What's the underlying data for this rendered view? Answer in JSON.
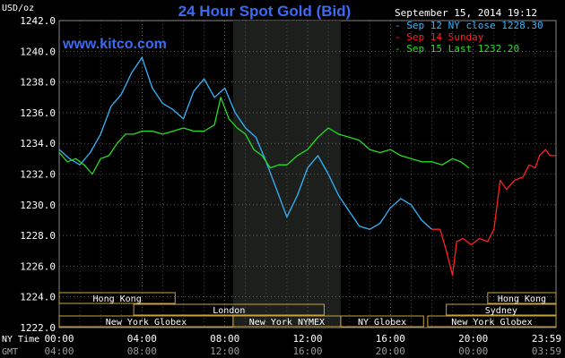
{
  "chart_data": {
    "type": "line",
    "title": "24 Hour Spot Gold (Bid)",
    "watermark": "www.kitco.com",
    "timestamp": "September 15, 2014 19:12",
    "ylabel": "USD/oz",
    "ylim": [
      1222.0,
      1242.0
    ],
    "yticks": [
      "1242.0",
      "1240.0",
      "1238.0",
      "1236.0",
      "1234.0",
      "1232.0",
      "1230.0",
      "1228.0",
      "1226.0",
      "1224.0",
      "1222.0"
    ],
    "xlim": [
      0,
      24
    ],
    "grid": true,
    "legend_position": "top-right",
    "x_rows": [
      {
        "label": "NY Time",
        "ticks": [
          "00:00",
          "04:00",
          "08:00",
          "12:00",
          "16:00",
          "20:00",
          "23:59"
        ]
      },
      {
        "label": "GMT",
        "ticks": [
          "04:00",
          "08:00",
          "12:00",
          "16:00",
          "20:00",
          "00:00",
          "03:59"
        ]
      }
    ],
    "sessions": [
      {
        "name": "Hong Kong",
        "start": 0,
        "end": 5.6,
        "row": 0
      },
      {
        "name": "Hong Kong",
        "start": 20.7,
        "end": 24,
        "row": 0
      },
      {
        "name": "Sydney",
        "start": 18.7,
        "end": 24,
        "row": 1
      },
      {
        "name": "London",
        "start": 3.6,
        "end": 12.8,
        "row": 1
      },
      {
        "name": "New York Globex",
        "start": 0,
        "end": 8.4,
        "row": 2
      },
      {
        "name": "New York NYMEX",
        "start": 8.4,
        "end": 13.6,
        "row": 2
      },
      {
        "name": "NY Globex",
        "start": 13.6,
        "end": 17.6,
        "row": 2
      },
      {
        "name": "New York Globex",
        "start": 17.8,
        "end": 24,
        "row": 2
      }
    ],
    "shaded_region": {
      "start": 8.4,
      "end": 13.6
    },
    "series": [
      {
        "name": "Sep 12 NY close 1228.30",
        "color": "#33b5ff",
        "x": [
          0,
          0.5,
          1.0,
          1.5,
          2.0,
          2.5,
          3.0,
          3.5,
          4.0,
          4.5,
          5.0,
          5.5,
          6.0,
          6.5,
          7.0,
          7.5,
          8.0,
          8.5,
          9.0,
          9.5,
          10.0,
          10.5,
          11.0,
          11.5,
          12.0,
          12.5,
          13.0,
          13.5,
          14.0,
          14.5,
          15.0,
          15.5,
          16.0,
          16.5,
          17.0,
          17.5,
          18.0
        ],
        "values": [
          1233.6,
          1233.0,
          1232.6,
          1233.4,
          1234.6,
          1236.4,
          1237.2,
          1238.6,
          1239.6,
          1237.6,
          1236.6,
          1236.2,
          1235.6,
          1237.4,
          1238.2,
          1237.0,
          1237.6,
          1236.0,
          1235.0,
          1234.4,
          1232.8,
          1231.0,
          1229.2,
          1230.6,
          1232.4,
          1233.2,
          1232.0,
          1230.6,
          1229.6,
          1228.6,
          1228.4,
          1228.8,
          1229.8,
          1230.4,
          1230.0,
          1229.0,
          1228.4
        ]
      },
      {
        "name": "Sep 14 Sunday",
        "color": "#ff2020",
        "x": [
          18.0,
          18.4,
          18.7,
          19.0,
          19.2,
          19.5,
          19.9,
          20.3,
          20.7,
          21.0,
          21.3,
          21.6,
          22.0,
          22.4,
          22.7,
          23.0,
          23.2,
          23.5,
          23.7,
          23.99
        ],
        "values": [
          1228.4,
          1228.4,
          1227.0,
          1225.4,
          1227.6,
          1227.8,
          1227.4,
          1227.8,
          1227.6,
          1228.4,
          1231.6,
          1231.0,
          1231.6,
          1231.8,
          1232.6,
          1232.4,
          1233.2,
          1233.6,
          1233.2,
          1233.2
        ]
      },
      {
        "name": "Sep 15 Last 1232.20",
        "color": "#22e022",
        "x": [
          0,
          0.4,
          0.8,
          1.2,
          1.6,
          2.0,
          2.4,
          2.8,
          3.2,
          3.6,
          4.0,
          4.5,
          5.0,
          5.5,
          6.0,
          6.5,
          7.0,
          7.5,
          7.8,
          8.2,
          8.6,
          9.0,
          9.4,
          9.8,
          10.2,
          10.6,
          11.0,
          11.5,
          12.0,
          12.5,
          13.0,
          13.5,
          14.0,
          14.5,
          15.0,
          15.5,
          16.0,
          16.5,
          17.0,
          17.5,
          18.0,
          18.5,
          19.0,
          19.4,
          19.8
        ],
        "values": [
          1233.4,
          1232.8,
          1233.0,
          1232.6,
          1232.0,
          1233.0,
          1233.2,
          1234.0,
          1234.6,
          1234.6,
          1234.8,
          1234.8,
          1234.6,
          1234.8,
          1235.0,
          1234.8,
          1234.8,
          1235.2,
          1237.0,
          1235.6,
          1235.0,
          1234.6,
          1233.6,
          1233.2,
          1232.4,
          1232.6,
          1232.6,
          1233.2,
          1233.6,
          1234.4,
          1235.0,
          1234.6,
          1234.4,
          1234.2,
          1233.6,
          1233.4,
          1233.6,
          1233.2,
          1233.0,
          1232.8,
          1232.8,
          1232.6,
          1233.0,
          1232.8,
          1232.4
        ]
      }
    ]
  }
}
